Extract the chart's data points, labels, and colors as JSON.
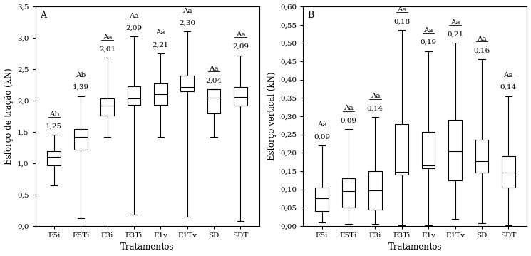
{
  "panel_A": {
    "title": "A",
    "ylabel": "Esforço de tração (kN)",
    "xlabel": "Tratamentos",
    "ylim": [
      0.0,
      3.5
    ],
    "yticks": [
      0.0,
      0.5,
      1.0,
      1.5,
      2.0,
      2.5,
      3.0,
      3.5
    ],
    "ytick_labels": [
      "0,0",
      "0,5",
      "1,0",
      "1,5",
      "2,0",
      "2,5",
      "3,0",
      "3,5"
    ],
    "categories": [
      "E5i",
      "E5Ti",
      "E3i",
      "E3Ti",
      "E1v",
      "E1Tv",
      "SD",
      "SDT"
    ],
    "mean_labels": [
      "1,25",
      "1,39",
      "2,01",
      "2,09",
      "2,21",
      "2,30",
      "2,04",
      "2,09"
    ],
    "stat_labels": [
      "Ab",
      "Ab",
      "Aa",
      "Aa",
      "Aa",
      "Aa",
      "Aa",
      "Aa"
    ],
    "boxes": [
      {
        "q1": 0.97,
        "median": 1.1,
        "q3": 1.19,
        "whislo": 0.65,
        "whishi": 1.45
      },
      {
        "q1": 1.22,
        "median": 1.42,
        "q3": 1.55,
        "whislo": 0.12,
        "whishi": 2.07
      },
      {
        "q1": 1.76,
        "median": 1.92,
        "q3": 2.03,
        "whislo": 1.42,
        "whishi": 2.68
      },
      {
        "q1": 1.93,
        "median": 2.03,
        "q3": 2.23,
        "whislo": 0.18,
        "whishi": 3.02
      },
      {
        "q1": 1.93,
        "median": 2.1,
        "q3": 2.27,
        "whislo": 1.42,
        "whishi": 2.75
      },
      {
        "q1": 2.15,
        "median": 2.22,
        "q3": 2.4,
        "whislo": 0.15,
        "whishi": 3.1
      },
      {
        "q1": 1.8,
        "median": 2.05,
        "q3": 2.18,
        "whislo": 1.42,
        "whishi": 2.18
      },
      {
        "q1": 1.92,
        "median": 2.06,
        "q3": 2.22,
        "whislo": 0.08,
        "whishi": 2.72
      }
    ]
  },
  "panel_B": {
    "title": "B",
    "ylabel": "Esforço vertical (kN)",
    "xlabel": "Tratamentos",
    "ylim": [
      0.0,
      0.6
    ],
    "yticks": [
      0.0,
      0.05,
      0.1,
      0.15,
      0.2,
      0.25,
      0.3,
      0.35,
      0.4,
      0.45,
      0.5,
      0.55,
      0.6
    ],
    "ytick_labels": [
      "0,00",
      "0,05",
      "0,10",
      "0,15",
      "0,20",
      "0,25",
      "0,30",
      "0,35",
      "0,40",
      "0,45",
      "0,50",
      "0,55",
      "0,60"
    ],
    "categories": [
      "E5i",
      "E5Ti",
      "E3i",
      "E3Ti",
      "E1v",
      "E1Tv",
      "SD",
      "SDT"
    ],
    "mean_labels": [
      "0,09",
      "0,09",
      "0,14",
      "0,18",
      "0,19",
      "0,21",
      "0,16",
      "0,14"
    ],
    "stat_labels": [
      "Aa",
      "Aa",
      "Aa",
      "Aa",
      "Aa",
      "Aa",
      "Aa",
      "Aa"
    ],
    "boxes": [
      {
        "q1": 0.04,
        "median": 0.075,
        "q3": 0.105,
        "whislo": 0.01,
        "whishi": 0.22
      },
      {
        "q1": 0.05,
        "median": 0.095,
        "q3": 0.13,
        "whislo": 0.005,
        "whishi": 0.265
      },
      {
        "q1": 0.045,
        "median": 0.097,
        "q3": 0.15,
        "whislo": 0.005,
        "whishi": 0.298
      },
      {
        "q1": 0.14,
        "median": 0.148,
        "q3": 0.278,
        "whislo": 0.002,
        "whishi": 0.535
      },
      {
        "q1": 0.158,
        "median": 0.165,
        "q3": 0.258,
        "whislo": 0.002,
        "whishi": 0.478
      },
      {
        "q1": 0.125,
        "median": 0.205,
        "q3": 0.29,
        "whislo": 0.02,
        "whishi": 0.5
      },
      {
        "q1": 0.145,
        "median": 0.178,
        "q3": 0.235,
        "whislo": 0.008,
        "whishi": 0.455
      },
      {
        "q1": 0.105,
        "median": 0.145,
        "q3": 0.19,
        "whislo": 0.002,
        "whishi": 0.355
      }
    ]
  },
  "box_color": "#ffffff",
  "box_edgecolor": "#000000",
  "median_color": "#000000",
  "whisker_color": "#000000",
  "cap_color": "#000000",
  "background_color": "#ffffff",
  "fontsize_tick": 7.5,
  "fontsize_label": 8.5,
  "fontsize_title": 9,
  "fontsize_annotation": 7.5
}
